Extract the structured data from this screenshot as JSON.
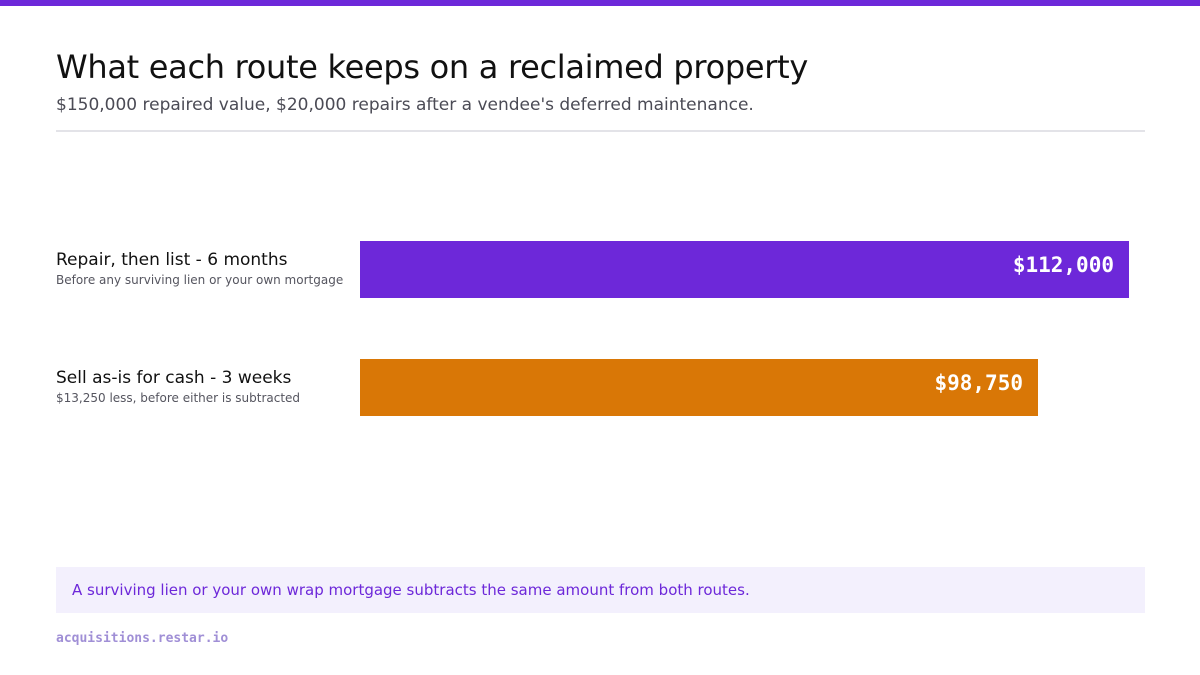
{
  "title": "What each route keeps on a reclaimed property",
  "subtitle": "$150,000 repaired value, $20,000 repairs after a vendee's deferred maintenance.",
  "callout": "A surviving lien or your own wrap mortgage subtracts the same amount from both routes.",
  "footer": "acquisitions.restar.io",
  "colors": {
    "accent": "#6d28d9",
    "repair_bar": "#6d28d9",
    "cash_bar": "#d97706"
  },
  "chart_data": {
    "type": "bar",
    "orientation": "horizontal",
    "title": "What each route keeps on a reclaimed property",
    "subtitle": "$150,000 repaired value, $20,000 repairs after a vendee's deferred maintenance.",
    "grid": false,
    "legend": "none",
    "xlim": [
      0,
      115000
    ],
    "categories": [
      "Repair, then list - 6 months",
      "Sell as-is for cash - 3 weeks"
    ],
    "notes": [
      "Before any surviving lien or your own mortgage",
      "$13,250 less, before either is subtracted"
    ],
    "values": [
      112000,
      98750
    ],
    "value_labels": [
      "$112,000",
      "$98,750"
    ],
    "bar_colors": [
      "#6d28d9",
      "#d97706"
    ]
  }
}
